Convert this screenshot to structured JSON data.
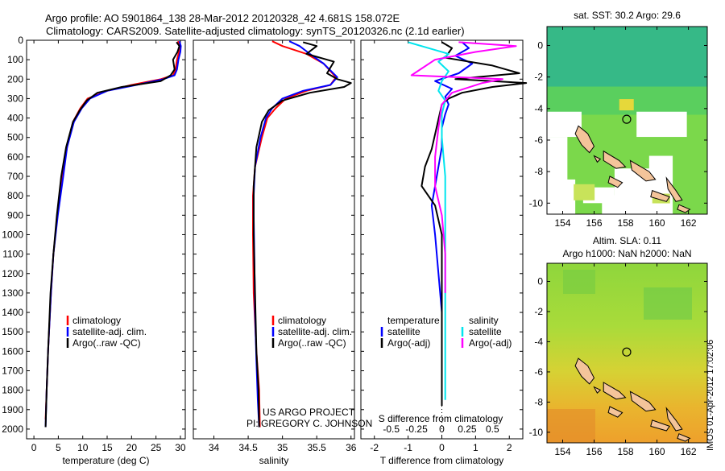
{
  "header": {
    "line1": "Argo profile: AO 5901864_138 28-Mar-2012 20120328_42 4.681S 158.072E",
    "line2": "Climatology: CARS2009. Satellite-adjusted climatology: synTS_20120326.nc (2.1d earlier)"
  },
  "credits": {
    "project": "US ARGO PROJECT",
    "pi": "PI: GREGORY C. JOHNSON"
  },
  "stamp": "IMOS 01-Apr-2012 17:02:06",
  "colors": {
    "climatology": "#ff0000",
    "satellite": "#0000ff",
    "argo": "#000000",
    "sal_satellite": "#00e5ee",
    "sal_argo": "#ff00ff",
    "coast": "#f4c49a"
  },
  "chart_data": [
    {
      "id": "temperature",
      "type": "line",
      "xlabel": "temperature (deg C)",
      "ylabel": "",
      "xlim": [
        -1.5,
        31
      ],
      "ylim": [
        0,
        2050
      ],
      "y_reversed": true,
      "xticks": [
        "0",
        "5",
        "10",
        "15",
        "20",
        "25",
        "30"
      ],
      "yticks": [
        "0",
        "100",
        "200",
        "300",
        "400",
        "500",
        "600",
        "700",
        "800",
        "900",
        "1000",
        "1100",
        "1200",
        "1300",
        "1400",
        "1500",
        "1600",
        "1700",
        "1800",
        "1900",
        "2000"
      ],
      "legend": [
        "climatology",
        "satellite-adj. clim.",
        "Argo(..raw -QC)"
      ],
      "series": [
        {
          "name": "climatology",
          "color": "#ff0000",
          "x": [
            29.5,
            29.8,
            29.7,
            29.3,
            29.0,
            28.5,
            26.0,
            20.0,
            15.0,
            11.0,
            9.5,
            8.0,
            6.8,
            5.8,
            4.8,
            4.0,
            3.5,
            2.9,
            2.6,
            2.4
          ],
          "y": [
            5,
            30,
            60,
            100,
            150,
            180,
            200,
            230,
            260,
            300,
            350,
            420,
            550,
            700,
            900,
            1100,
            1300,
            1600,
            1800,
            1950
          ]
        },
        {
          "name": "satellite-adj. clim.",
          "color": "#0000ff",
          "x": [
            29.8,
            30.1,
            30.0,
            29.6,
            29.3,
            28.8,
            26.5,
            21.0,
            15.0,
            11.5,
            9.8,
            8.2,
            6.8,
            6.0,
            4.9,
            4.0,
            3.5,
            2.9,
            2.6,
            2.4
          ],
          "y": [
            5,
            30,
            60,
            100,
            150,
            180,
            200,
            230,
            260,
            300,
            350,
            420,
            550,
            700,
            900,
            1100,
            1300,
            1600,
            1800,
            1990
          ]
        },
        {
          "name": "Argo(..raw -QC)",
          "color": "#000000",
          "x": [
            29.2,
            29.8,
            29.4,
            28.5,
            28.8,
            28.0,
            26.0,
            18.0,
            13.0,
            10.8,
            9.4,
            8.0,
            6.6,
            5.6,
            4.7,
            4.0,
            3.4,
            2.9,
            2.6,
            2.4
          ],
          "y": [
            10,
            30,
            60,
            100,
            150,
            180,
            210,
            240,
            270,
            310,
            360,
            420,
            550,
            700,
            900,
            1100,
            1300,
            1600,
            1800,
            1990
          ]
        }
      ]
    },
    {
      "id": "salinity",
      "type": "line",
      "xlabel": "salinity",
      "xlim": [
        33.7,
        36.05
      ],
      "ylim": [
        0,
        2050
      ],
      "y_reversed": true,
      "xticks": [
        "34",
        "34.5",
        "35",
        "35.5",
        "36"
      ],
      "legend": [
        "climatology",
        "satellite-adj. clim.",
        "Argo(..raw -QC)"
      ],
      "series": [
        {
          "name": "climatology",
          "color": "#ff0000",
          "x": [
            34.85,
            35.0,
            35.35,
            35.6,
            35.78,
            35.7,
            35.35,
            35.05,
            34.9,
            34.78,
            34.7,
            34.6,
            34.57,
            34.57,
            34.57,
            34.58,
            34.62,
            34.66,
            34.67
          ],
          "y": [
            5,
            30,
            70,
            120,
            190,
            230,
            260,
            300,
            350,
            400,
            500,
            650,
            800,
            850,
            1000,
            1300,
            1600,
            1800,
            1990
          ]
        },
        {
          "name": "satellite-adj. clim.",
          "color": "#0000ff",
          "x": [
            35.1,
            35.25,
            35.4,
            35.6,
            35.8,
            35.7,
            35.3,
            35.0,
            34.85,
            34.76,
            34.68,
            34.6,
            34.58,
            34.58,
            34.59,
            34.6,
            34.62,
            34.64,
            34.66
          ],
          "y": [
            5,
            30,
            70,
            120,
            190,
            230,
            260,
            300,
            350,
            400,
            500,
            650,
            800,
            900,
            1100,
            1400,
            1650,
            1850,
            1990
          ]
        },
        {
          "name": "Argo(..raw -QC)",
          "color": "#000000",
          "x": [
            35.3,
            35.5,
            35.35,
            35.75,
            35.65,
            35.8,
            36.0,
            35.9,
            35.4,
            35.0,
            34.8,
            34.7,
            34.62,
            34.58,
            34.58,
            34.6,
            34.62,
            34.65,
            34.66
          ],
          "y": [
            10,
            30,
            70,
            110,
            170,
            200,
            220,
            240,
            270,
            310,
            360,
            420,
            550,
            750,
            1000,
            1300,
            1600,
            1800,
            1990
          ]
        }
      ]
    },
    {
      "id": "difference",
      "type": "line",
      "xlabel": "T difference from climatology",
      "x2label": "S difference from climatology",
      "xlim": [
        -2.4,
        2.4
      ],
      "ylim": [
        0,
        2050
      ],
      "y_reversed": true,
      "xticks": [
        "-2",
        "-1",
        "0",
        "1",
        "2"
      ],
      "x2ticks": [
        "-0.5",
        "-0.25",
        "0",
        "0.25",
        "0.5"
      ],
      "legend": {
        "temperature_head": "temperature",
        "salinity_head": "salinity",
        "t_sat": "satellite",
        "t_argo": "Argo(-adj)",
        "s_sat": "satellite",
        "s_argo": "Argo(-adj)"
      },
      "series": [
        {
          "name": "T satellite",
          "color": "#0000ff",
          "x": [
            0.6,
            0.8,
            0.4,
            0.9,
            0.5,
            -0.2,
            0.3,
            0.1,
            0.2,
            0.1,
            0.0,
            0.0,
            -0.1,
            -0.2,
            -0.3,
            -0.2,
            -0.1,
            0.0,
            0.0,
            0.0
          ],
          "y": [
            10,
            40,
            80,
            120,
            170,
            210,
            250,
            290,
            330,
            380,
            450,
            550,
            650,
            750,
            850,
            1000,
            1200,
            1400,
            1600,
            1800
          ]
        },
        {
          "name": "T Argo(-adj)",
          "color": "#000000",
          "x": [
            0.0,
            0.3,
            0.1,
            1.5,
            2.3,
            0.4,
            2.5,
            1.5,
            0.6,
            0.2,
            0.0,
            -0.3,
            -0.5,
            -0.6,
            -0.2,
            0.0,
            0.0,
            0.0,
            0.0,
            0.0
          ],
          "y": [
            10,
            40,
            90,
            130,
            170,
            200,
            220,
            240,
            270,
            300,
            330,
            560,
            650,
            750,
            850,
            1000,
            1300,
            1600,
            1800,
            1880
          ]
        },
        {
          "name": "S satellite",
          "color": "#00e5ee",
          "x": [
            -1.0,
            -0.4,
            0.2,
            -0.1,
            0.2,
            0.0,
            -0.1,
            0.1,
            0.0,
            0.0,
            0.1,
            0.1,
            0.1,
            0.1,
            0.1,
            0.1,
            0.1
          ],
          "y": [
            10,
            40,
            70,
            110,
            160,
            210,
            260,
            310,
            380,
            500,
            700,
            900,
            1100,
            1300,
            1500,
            1700,
            1850
          ]
        },
        {
          "name": "S Argo(-adj)",
          "color": "#ff00ff",
          "x": [
            0.5,
            2.2,
            1.0,
            -0.2,
            -0.9,
            1.8,
            1.2,
            0.3,
            0.0,
            -0.1,
            -0.2,
            -0.2,
            0.0,
            0.1,
            0.1
          ],
          "y": [
            10,
            30,
            60,
            100,
            180,
            200,
            220,
            270,
            330,
            450,
            600,
            750,
            900,
            1100,
            1300
          ]
        }
      ]
    },
    {
      "id": "sst-map",
      "type": "heatmap",
      "title": "sat. SST: 30.2 Argo: 29.6",
      "xticks": [
        "154",
        "156",
        "158",
        "160",
        "162"
      ],
      "yticks": [
        "0",
        "-2",
        "-4",
        "-6",
        "-8",
        "-10"
      ],
      "xlim": [
        153,
        163.2
      ],
      "ylim": [
        -10.7,
        1.2
      ],
      "argo_position": [
        158.072,
        -4.681
      ]
    },
    {
      "id": "sla-map",
      "type": "heatmap",
      "title": "Altim. SLA: 0.11",
      "subtitle": "Argo h1000: NaN h2000: NaN",
      "xticks": [
        "154",
        "156",
        "158",
        "160",
        "162"
      ],
      "yticks": [
        "0",
        "-2",
        "-4",
        "-6",
        "-8",
        "-10"
      ],
      "xlim": [
        153,
        163.2
      ],
      "ylim": [
        -10.7,
        1.2
      ],
      "argo_position": [
        158.072,
        -4.681
      ]
    }
  ]
}
